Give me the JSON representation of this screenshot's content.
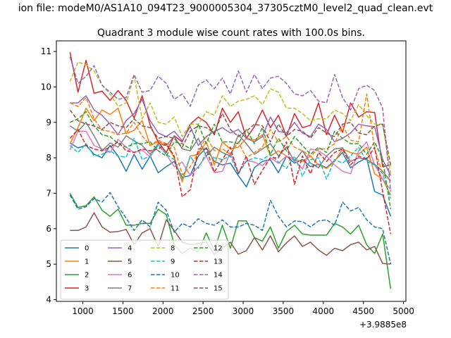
{
  "chart_data": {
    "type": "line",
    "suptitle": "ion file: modeM0/AS1A10_094T23_9000005304_37305cztM0_level2_quad_clean.evt",
    "title": "Quadrant 3 module wise count rates with 100.0s bins.",
    "xlabel": "",
    "ylabel": "",
    "x_offset_label": "+3.9885e8",
    "xlim": [
      670,
      5030
    ],
    "ylim": [
      3.95,
      11.3
    ],
    "xticks": [
      1000,
      1500,
      2000,
      2500,
      3000,
      3500,
      4000,
      4500,
      5000
    ],
    "yticks": [
      4,
      5,
      6,
      7,
      8,
      9,
      10,
      11
    ],
    "grid": false,
    "legend": {
      "location": "lower-left",
      "columns": 4
    },
    "x": [
      840,
      940,
      1040,
      1140,
      1240,
      1340,
      1440,
      1540,
      1640,
      1740,
      1840,
      1940,
      2040,
      2140,
      2240,
      2340,
      2440,
      2540,
      2640,
      2740,
      2840,
      2940,
      3040,
      3140,
      3240,
      3340,
      3440,
      3540,
      3640,
      3740,
      3840,
      3940,
      4040,
      4140,
      4240,
      4340,
      4440,
      4540,
      4640,
      4740,
      4840
    ],
    "series": [
      {
        "name": "0",
        "color": "#1f77b4",
        "dash": "solid",
        "values": [
          8.42,
          8.28,
          8.35,
          8.1,
          8.0,
          8.35,
          8.05,
          7.62,
          8.1,
          7.68,
          8.05,
          7.58,
          7.75,
          7.9,
          7.45,
          7.5,
          8.05,
          8.28,
          7.9,
          7.8,
          7.85,
          7.5,
          7.18,
          7.72,
          7.9,
          7.95,
          7.58,
          8.05,
          7.85,
          7.95,
          7.75,
          7.82,
          7.72,
          7.92,
          8.15,
          7.72,
          7.88,
          8.0,
          7.05,
          6.95,
          6.35
        ]
      },
      {
        "name": "1",
        "color": "#ff7f0e",
        "dash": "solid",
        "values": [
          8.4,
          8.85,
          9.4,
          9.05,
          9.35,
          9.22,
          9.4,
          8.68,
          8.78,
          9.05,
          8.35,
          8.45,
          8.38,
          8.0,
          7.32,
          8.05,
          8.1,
          8.45,
          7.8,
          8.45,
          8.25,
          8.3,
          8.55,
          8.5,
          8.65,
          8.05,
          8.2,
          8.05,
          7.95,
          7.9,
          8.05,
          7.8,
          7.7,
          7.9,
          8.25,
          8.15,
          8.1,
          8.3,
          7.55,
          7.4,
          6.95
        ]
      },
      {
        "name": "2",
        "color": "#2ca02c",
        "dash": "solid",
        "values": [
          7.0,
          6.6,
          6.65,
          6.9,
          6.52,
          6.35,
          6.55,
          6.1,
          6.1,
          6.15,
          6.15,
          6.55,
          6.4,
          5.55,
          5.3,
          5.45,
          5.35,
          5.88,
          5.38,
          6.1,
          5.45,
          6.22,
          6.22,
          5.75,
          5.65,
          6.05,
          5.45,
          5.92,
          6.1,
          5.85,
          5.82,
          5.82,
          5.82,
          6.15,
          6.05,
          5.85,
          6.1,
          5.55,
          5.3,
          5.85,
          4.3
        ]
      },
      {
        "name": "3",
        "color": "#d62728",
        "dash": "solid",
        "values": [
          10.98,
          9.85,
          10.75,
          9.82,
          9.88,
          9.62,
          9.9,
          9.62,
          9.12,
          9.75,
          8.92,
          8.45,
          8.15,
          8.62,
          8.45,
          8.95,
          9.15,
          9.0,
          8.65,
          9.4,
          9.0,
          9.3,
          8.55,
          8.88,
          9.35,
          8.85,
          9.2,
          8.6,
          9.25,
          8.85,
          8.92,
          9.55,
          8.65,
          9.2,
          8.72,
          9.55,
          9.15,
          9.3,
          9.28,
          7.75,
          7.8
        ]
      },
      {
        "name": "4",
        "color": "#9467bd",
        "dash": "solid",
        "values": [
          9.55,
          9.55,
          9.75,
          9.35,
          9.2,
          8.95,
          8.65,
          9.05,
          9.25,
          9.65,
          9.05,
          8.7,
          8.6,
          8.75,
          8.48,
          8.88,
          8.35,
          8.6,
          8.75,
          8.85,
          8.7,
          8.8,
          8.55,
          8.45,
          8.6,
          9.15,
          8.75,
          8.7,
          9.0,
          8.7,
          8.6,
          8.95,
          8.8,
          8.45,
          8.55,
          8.7,
          8.95,
          8.9,
          8.88,
          7.95,
          7.5
        ]
      },
      {
        "name": "5",
        "color": "#8c564b",
        "dash": "solid",
        "values": [
          5.95,
          5.95,
          6.05,
          6.45,
          6.05,
          5.9,
          5.92,
          5.98,
          5.55,
          5.88,
          6.0,
          5.5,
          6.25,
          5.95,
          5.62,
          5.55,
          5.58,
          5.62,
          5.28,
          5.45,
          5.62,
          5.28,
          5.38,
          5.75,
          5.4,
          5.8,
          5.35,
          5.6,
          5.8,
          5.5,
          5.62,
          5.4,
          5.25,
          5.45,
          5.38,
          5.55,
          5.62,
          5.4,
          5.5,
          5.02,
          5.0
        ]
      },
      {
        "name": "6",
        "color": "#e377c2",
        "dash": "solid",
        "values": [
          8.22,
          8.75,
          8.75,
          8.35,
          8.25,
          8.15,
          8.52,
          8.3,
          8.15,
          8.22,
          8.02,
          8.38,
          8.1,
          7.75,
          7.88,
          7.5,
          7.75,
          8.05,
          7.58,
          7.62,
          8.15,
          7.58,
          7.92,
          7.88,
          7.78,
          8.0,
          7.85,
          8.05,
          7.95,
          7.68,
          8.25,
          8.2,
          8.05,
          7.8,
          7.62,
          7.55,
          8.2,
          8.45,
          7.8,
          7.4,
          7.1
        ]
      },
      {
        "name": "7",
        "color": "#7f7f7f",
        "dash": "solid",
        "values": [
          8.9,
          8.75,
          9.0,
          8.62,
          8.2,
          8.42,
          8.3,
          8.62,
          8.48,
          8.35,
          8.1,
          8.4,
          8.35,
          8.6,
          8.25,
          8.2,
          8.55,
          8.05,
          8.3,
          8.15,
          8.05,
          8.65,
          8.4,
          8.1,
          8.25,
          8.4,
          8.05,
          8.3,
          7.9,
          8.2,
          7.85,
          7.72,
          8.05,
          8.25,
          8.28,
          7.9,
          8.0,
          7.95,
          7.82,
          7.62,
          7.35
        ]
      },
      {
        "name": "8",
        "color": "#bcbd22",
        "dash": "dashed",
        "values": [
          10.15,
          10.7,
          10.62,
          10.45,
          10.05,
          9.8,
          9.45,
          9.55,
          10.3,
          9.1,
          9.55,
          9.0,
          8.95,
          9.15,
          8.6,
          8.95,
          8.95,
          9.3,
          9.2,
          9.75,
          9.45,
          9.6,
          9.65,
          9.75,
          9.5,
          9.95,
          9.85,
          9.4,
          9.4,
          9.25,
          9.05,
          9.1,
          9.1,
          9.35,
          9.25,
          9.05,
          9.5,
          9.2,
          8.95,
          8.95,
          7.55
        ]
      },
      {
        "name": "9",
        "color": "#17becf",
        "dash": "dashed",
        "values": [
          8.35,
          8.15,
          8.4,
          8.05,
          8.1,
          8.2,
          8.05,
          8.02,
          8.55,
          7.95,
          8.05,
          8.35,
          8.1,
          7.95,
          7.4,
          8.05,
          7.7,
          8.15,
          8.0,
          7.95,
          8.05,
          7.55,
          7.9,
          8.0,
          7.95,
          8.1,
          7.88,
          7.7,
          8.05,
          7.48,
          7.95,
          8.0,
          7.4,
          7.95,
          7.85,
          8.05,
          8.3,
          7.9,
          7.8,
          7.55,
          6.85
        ]
      },
      {
        "name": "10",
        "color": "#1f77b4",
        "dash": "dashed",
        "values": [
          6.95,
          6.55,
          6.62,
          6.85,
          6.75,
          7.02,
          6.62,
          6.3,
          5.95,
          6.25,
          6.05,
          6.75,
          6.52,
          5.9,
          6.15,
          6.05,
          6.28,
          6.15,
          6.1,
          6.25,
          6.05,
          6.05,
          6.15,
          6.1,
          5.95,
          6.8,
          6.35,
          6.05,
          6.22,
          6.2,
          6.05,
          6.22,
          6.25,
          6.1,
          6.75,
          6.5,
          6.6,
          6.25,
          6.05,
          6.0,
          5.0
        ]
      },
      {
        "name": "11",
        "color": "#ff7f0e",
        "dash": "dashed",
        "values": [
          9.55,
          9.45,
          9.7,
          9.1,
          8.78,
          8.75,
          8.65,
          8.7,
          9.0,
          8.62,
          8.35,
          8.5,
          8.4,
          8.3,
          7.52,
          7.75,
          8.15,
          8.6,
          8.2,
          8.25,
          8.1,
          8.45,
          8.0,
          8.15,
          8.3,
          8.8,
          8.45,
          8.6,
          8.3,
          8.2,
          8.05,
          8.25,
          8.25,
          8.4,
          8.9,
          8.5,
          8.45,
          9.8,
          8.25,
          7.55,
          7.35
        ]
      },
      {
        "name": "12",
        "color": "#2ca02c",
        "dash": "dashed",
        "values": [
          9.0,
          9.1,
          9.3,
          8.9,
          8.65,
          8.6,
          8.4,
          8.3,
          8.4,
          8.4,
          8.45,
          8.2,
          8.05,
          8.45,
          8.4,
          8.25,
          8.95,
          8.4,
          8.95,
          8.45,
          8.45,
          8.4,
          8.8,
          8.4,
          8.85,
          8.1,
          8.55,
          8.2,
          8.6,
          8.35,
          8.1,
          8.3,
          8.15,
          8.75,
          8.55,
          8.4,
          8.4,
          8.1,
          8.45,
          7.95,
          6.55
        ]
      },
      {
        "name": "13",
        "color": "#d62728",
        "dash": "dashed",
        "values": [
          8.55,
          8.8,
          8.35,
          8.25,
          8.2,
          8.3,
          8.45,
          8.2,
          8.15,
          8.25,
          8.2,
          8.25,
          8.4,
          8.05,
          6.9,
          7.1,
          8.25,
          8.25,
          7.6,
          7.95,
          8.3,
          7.55,
          8.05,
          7.25,
          7.65,
          8.0,
          8.0,
          8.45,
          7.25,
          8.05,
          7.55,
          8.15,
          7.9,
          8.15,
          8.25,
          7.8,
          8.05,
          7.95,
          8.3,
          7.05,
          5.85
        ]
      },
      {
        "name": "14",
        "color": "#9467bd",
        "dash": "dashed",
        "values": [
          10.85,
          10.1,
          10.3,
          10.6,
          10.05,
          9.85,
          9.65,
          9.7,
          10.35,
          9.85,
          9.9,
          10.3,
          10.1,
          9.65,
          9.8,
          9.45,
          10.05,
          10.2,
          9.95,
          10.25,
          9.8,
          10.45,
          9.85,
          10.35,
          9.95,
          10.25,
          10.3,
          10.1,
          9.8,
          9.75,
          9.9,
          9.6,
          9.55,
          10.35,
          9.7,
          9.35,
          9.95,
          10.05,
          9.9,
          9.4,
          7.05
        ]
      },
      {
        "name": "15",
        "color": "#8c564b",
        "dash": "dashed",
        "values": [
          9.35,
          9.05,
          8.95,
          8.9,
          8.8,
          9.0,
          8.9,
          8.85,
          9.1,
          8.9,
          8.85,
          8.55,
          8.6,
          8.55,
          8.3,
          8.75,
          8.9,
          8.85,
          8.7,
          9.25,
          8.8,
          8.6,
          8.75,
          8.95,
          8.9,
          8.45,
          8.95,
          8.6,
          8.8,
          8.75,
          8.55,
          8.85,
          8.7,
          8.6,
          8.95,
          9.0,
          8.7,
          8.65,
          8.9,
          8.95,
          7.8
        ]
      }
    ]
  }
}
